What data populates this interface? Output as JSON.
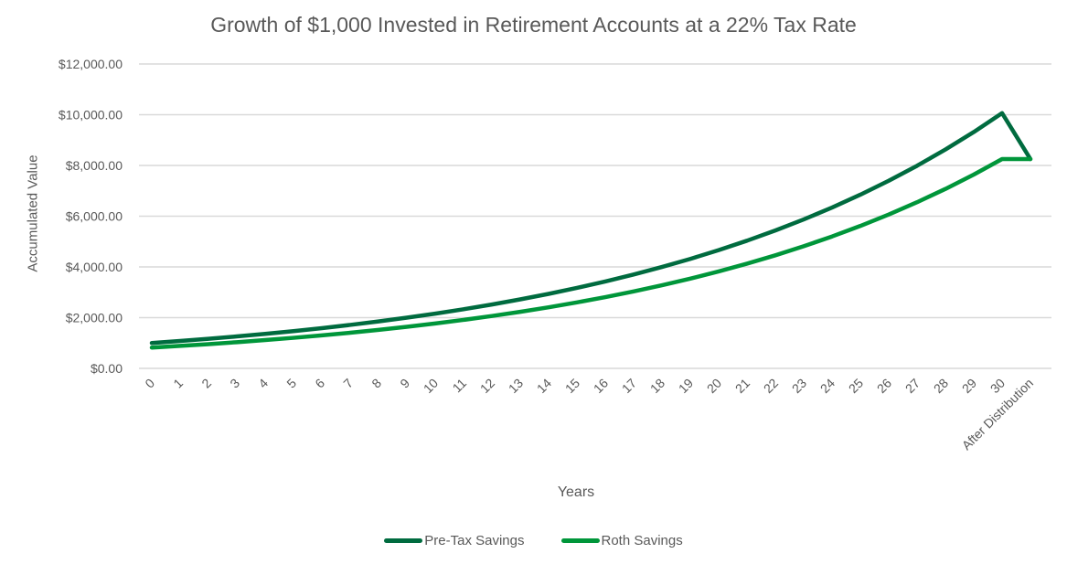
{
  "chart_data": {
    "type": "line",
    "title": "Growth of $1,000 Invested in Retirement Accounts at a 22% Tax Rate",
    "xlabel": "Years",
    "ylabel": "Accumulated Value",
    "ylim": [
      0,
      12000
    ],
    "yticks": [
      "$0.00",
      "$2,000.00",
      "$4,000.00",
      "$6,000.00",
      "$8,000.00",
      "$10,000.00",
      "$12,000.00"
    ],
    "grid": true,
    "legend_position": "bottom",
    "categories": [
      "0",
      "1",
      "2",
      "3",
      "4",
      "5",
      "6",
      "7",
      "8",
      "9",
      "10",
      "11",
      "12",
      "13",
      "14",
      "15",
      "16",
      "17",
      "18",
      "19",
      "20",
      "21",
      "22",
      "23",
      "24",
      "25",
      "26",
      "27",
      "28",
      "29",
      "30",
      "After Distribution"
    ],
    "series": [
      {
        "name": "Pre-Tax Savings",
        "color": "#006B3F",
        "values": [
          1000,
          1080,
          1166,
          1260,
          1360,
          1469,
          1587,
          1714,
          1851,
          1999,
          2159,
          2332,
          2518,
          2720,
          2937,
          3172,
          3426,
          3700,
          3996,
          4316,
          4661,
          5034,
          5437,
          5871,
          6341,
          6848,
          7396,
          7988,
          8627,
          9317,
          10063,
          8252
        ]
      },
      {
        "name": "Roth Savings",
        "color": "#00963A",
        "values": [
          820,
          886,
          956,
          1033,
          1116,
          1205,
          1301,
          1405,
          1518,
          1639,
          1770,
          1912,
          2065,
          2230,
          2408,
          2601,
          2809,
          3034,
          3277,
          3539,
          3822,
          4128,
          4458,
          4815,
          5200,
          5616,
          6065,
          6550,
          7074,
          7640,
          8252,
          8252
        ]
      }
    ]
  },
  "legend": {
    "items": [
      {
        "label": "Pre-Tax Savings",
        "color": "#006B3F"
      },
      {
        "label": "Roth Savings",
        "color": "#00963A"
      }
    ]
  }
}
